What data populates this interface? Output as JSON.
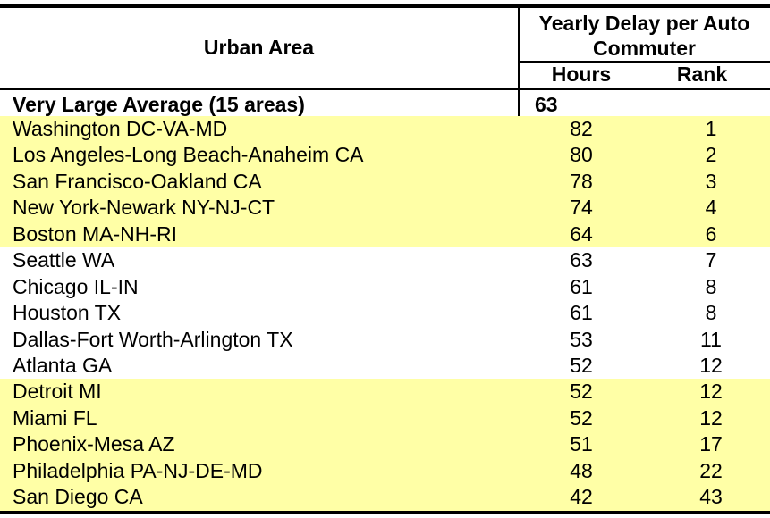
{
  "header": {
    "urban_area": "Urban Area",
    "delay_group": "Yearly Delay per Auto Commuter",
    "hours": "Hours",
    "rank": "Rank"
  },
  "summary": {
    "label": "Very Large Average (15 areas)",
    "hours": "63"
  },
  "rows": [
    {
      "area": "Washington DC-VA-MD",
      "hours": "82",
      "rank": "1",
      "shaded": true
    },
    {
      "area": "Los Angeles-Long Beach-Anaheim CA",
      "hours": "80",
      "rank": "2",
      "shaded": true
    },
    {
      "area": "San Francisco-Oakland CA",
      "hours": "78",
      "rank": "3",
      "shaded": true
    },
    {
      "area": "New York-Newark NY-NJ-CT",
      "hours": "74",
      "rank": "4",
      "shaded": true
    },
    {
      "area": "Boston MA-NH-RI",
      "hours": "64",
      "rank": "6",
      "shaded": true
    },
    {
      "area": "Seattle WA",
      "hours": "63",
      "rank": "7",
      "shaded": false
    },
    {
      "area": "Chicago IL-IN",
      "hours": "61",
      "rank": "8",
      "shaded": false
    },
    {
      "area": "Houston TX",
      "hours": "61",
      "rank": "8",
      "shaded": false
    },
    {
      "area": "Dallas-Fort Worth-Arlington TX",
      "hours": "53",
      "rank": "11",
      "shaded": false
    },
    {
      "area": "Atlanta GA",
      "hours": "52",
      "rank": "12",
      "shaded": false
    },
    {
      "area": "Detroit MI",
      "hours": "52",
      "rank": "12",
      "shaded": true
    },
    {
      "area": "Miami FL",
      "hours": "52",
      "rank": "12",
      "shaded": true
    },
    {
      "area": "Phoenix-Mesa AZ",
      "hours": "51",
      "rank": "17",
      "shaded": true
    },
    {
      "area": "Philadelphia PA-NJ-DE-MD",
      "hours": "48",
      "rank": "22",
      "shaded": true
    },
    {
      "area": "San Diego CA",
      "hours": "42",
      "rank": "43",
      "shaded": true
    }
  ],
  "colors": {
    "row_highlight": "#ffffa6",
    "rule": "#000000"
  }
}
